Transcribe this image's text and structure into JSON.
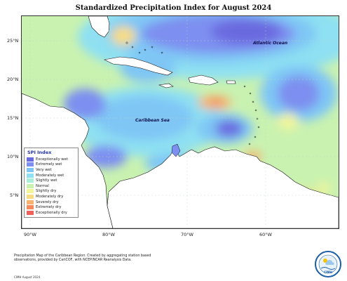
{
  "title": "Standardized Precipitation Index for August 2024",
  "labels": {
    "atlantic": "Atlantic Ocean",
    "caribbean": "Caribbean Sea"
  },
  "lat_ticks": [
    "25°N",
    "20°N",
    "15°N",
    "10°N",
    "5°N"
  ],
  "lon_ticks": [
    "90°W",
    "80°W",
    "70°W",
    "60°W"
  ],
  "legend": {
    "title": "SPI Index",
    "items": [
      {
        "label": "Exceptionally wet",
        "color": "#6a6adf"
      },
      {
        "label": "Extremely wet",
        "color": "#7d8ff0"
      },
      {
        "label": "Very wet",
        "color": "#7fc6f5"
      },
      {
        "label": "Moderately wet",
        "color": "#8ee0f2"
      },
      {
        "label": "Slightly wet",
        "color": "#a9eed8"
      },
      {
        "label": "Normal",
        "color": "#c9f2b0"
      },
      {
        "label": "Slightly dry",
        "color": "#f2f59a"
      },
      {
        "label": "Moderately dry",
        "color": "#f7dc82"
      },
      {
        "label": "Severely dry",
        "color": "#f7b36f"
      },
      {
        "label": "Extremely dry",
        "color": "#f58a5c"
      },
      {
        "label": "Exceptionally dry",
        "color": "#f0605a"
      }
    ]
  },
  "note": "Precipitation Map of the Caribbean Region. Created by aggregating station based observations, provided by CariCOF, with NCEP/NCAR Reanalysis Data.",
  "credit": "CIMH August 2024",
  "logo_text": "CIMH"
}
